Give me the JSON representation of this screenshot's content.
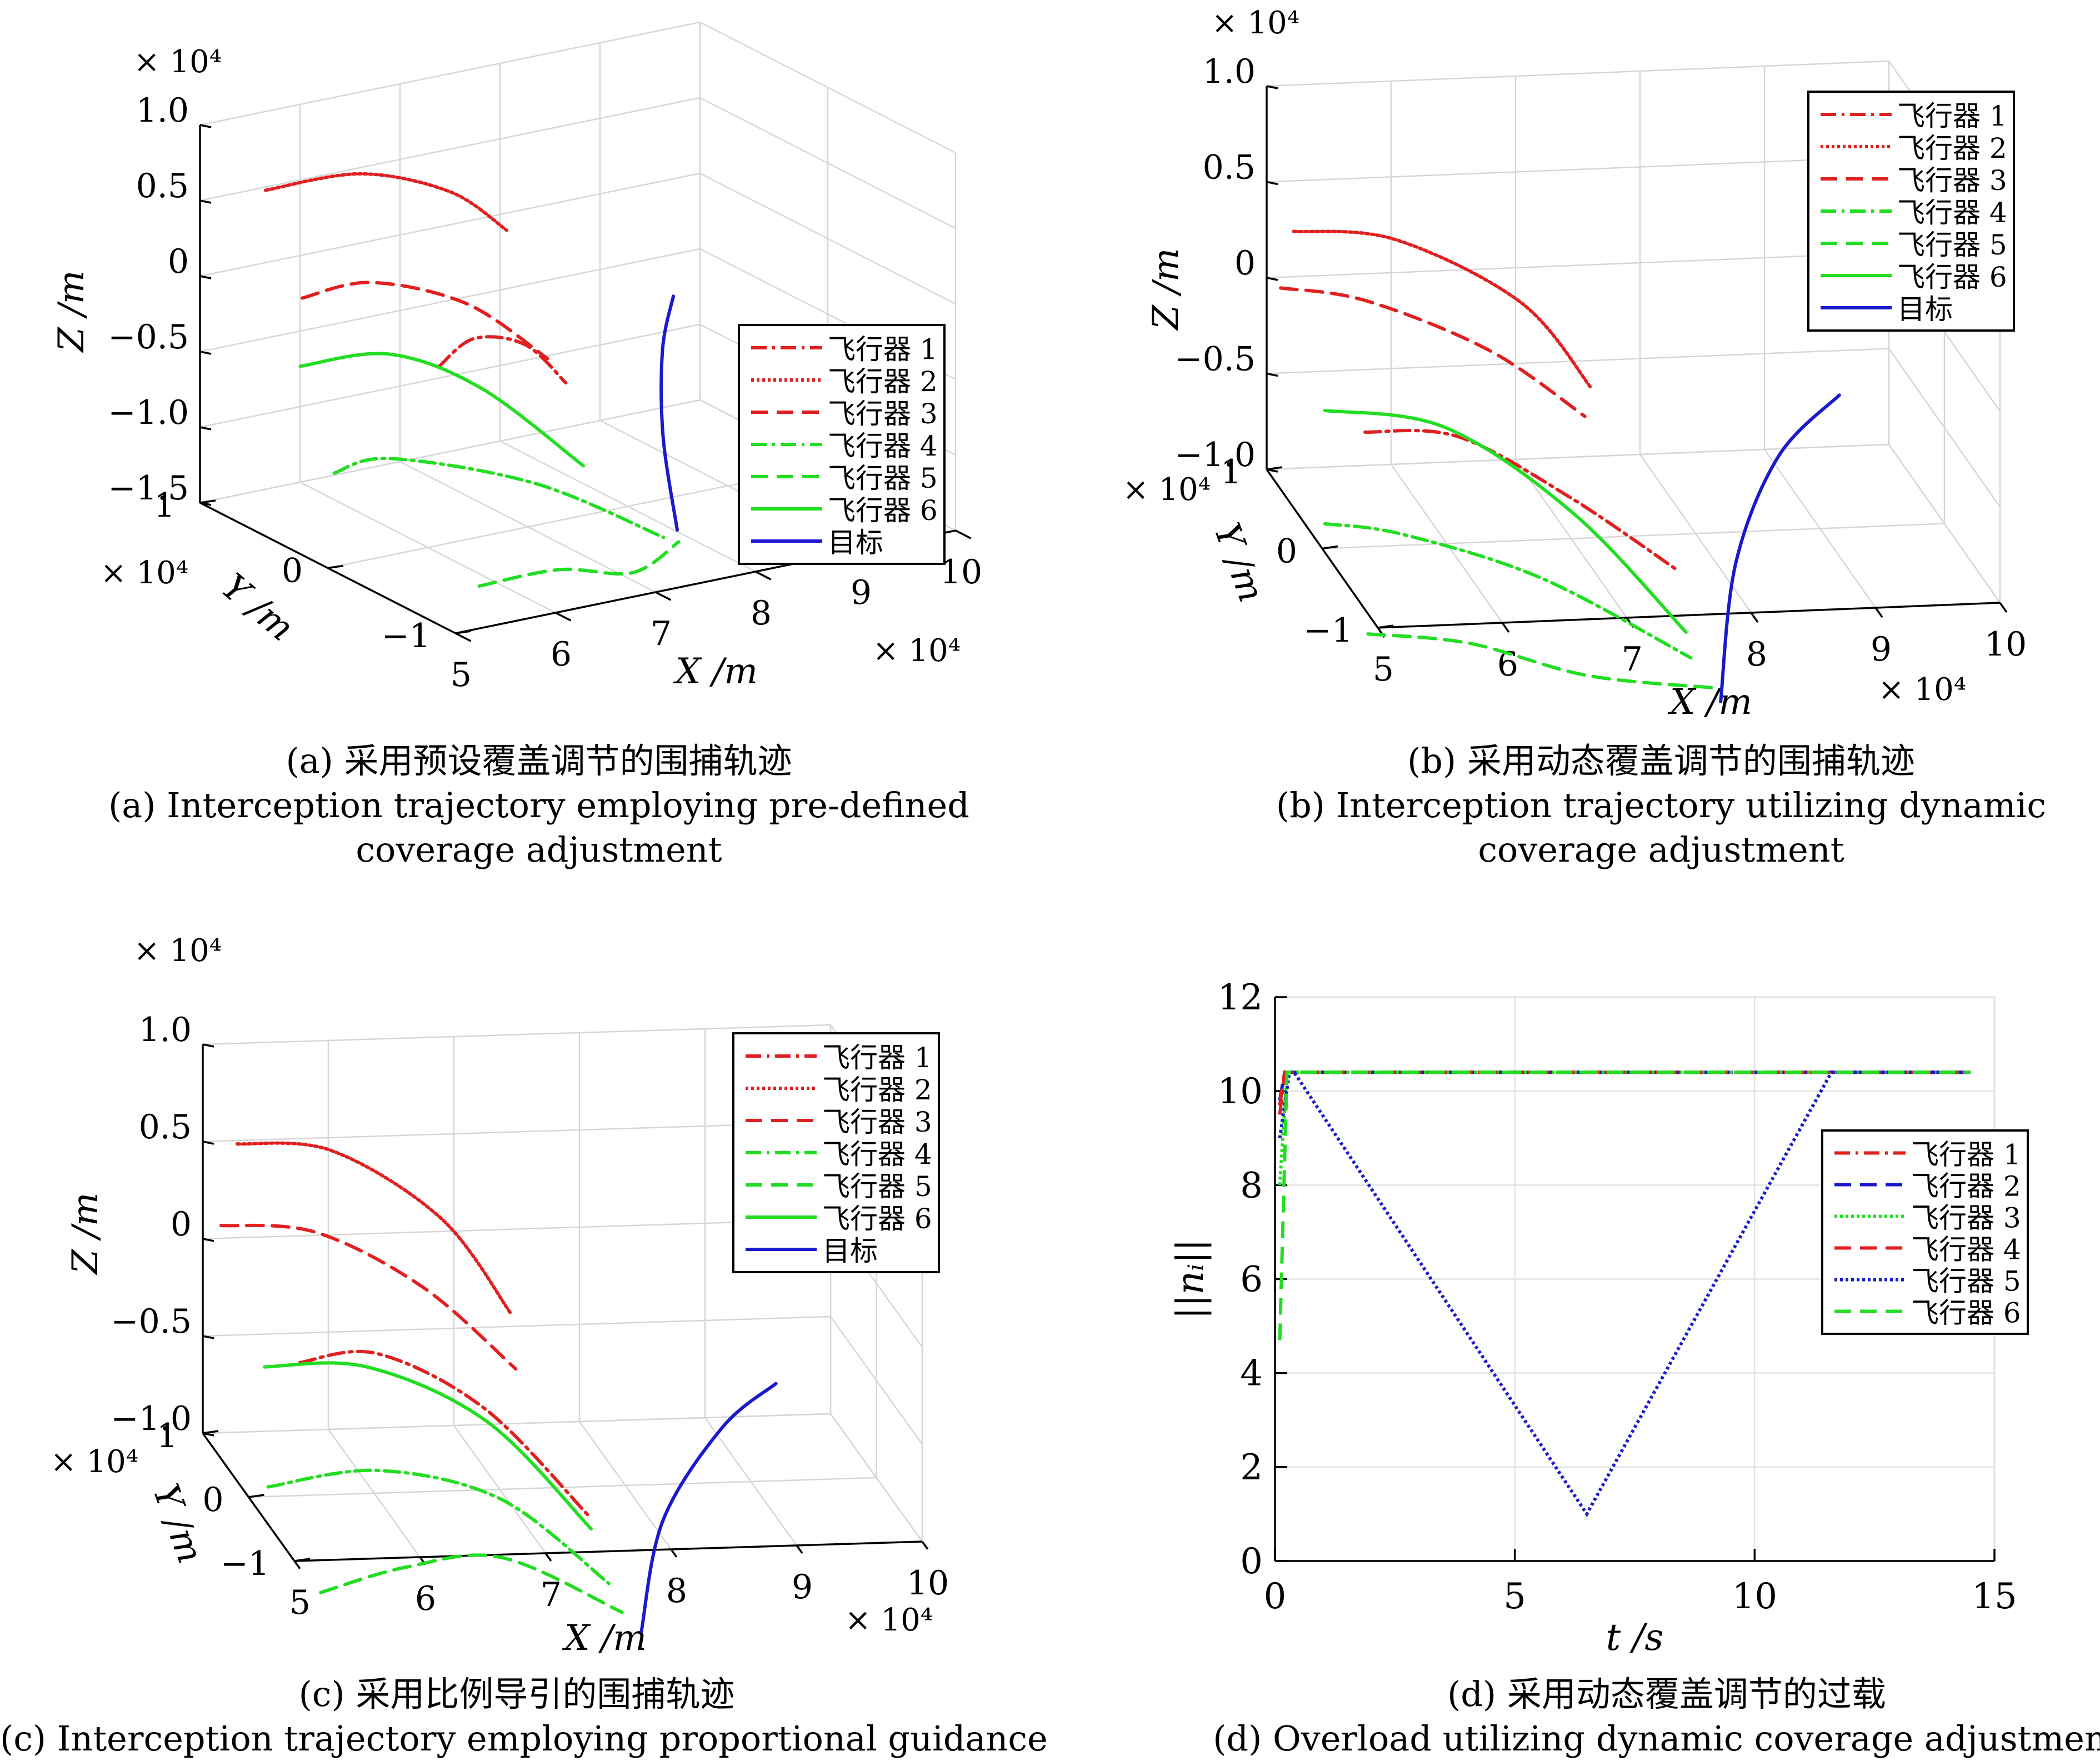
{
  "panels": [
    {
      "id": "a",
      "caption_cn": "(a) 采用预设覆盖调节的围捕轨迹",
      "caption_en_1": "(a) Interception trajectory employing pre-defined",
      "caption_en_2": "coverage adjustment"
    },
    {
      "id": "b",
      "caption_cn": "(b) 采用动态覆盖调节的围捕轨迹",
      "caption_en_1": "(b) Interception trajectory utilizing dynamic",
      "caption_en_2": "coverage adjustment"
    },
    {
      "id": "c",
      "caption_cn": "(c) 采用比例导引的围捕轨迹",
      "caption_en_1": "(c) Interception trajectory employing proportional guidance",
      "caption_en_2": ""
    },
    {
      "id": "d",
      "caption_cn": "(d) 采用动态覆盖调节的过载",
      "caption_en_1": "(d) Overload utilizing dynamic coverage adjustment",
      "caption_en_2": ""
    }
  ],
  "colors": {
    "red": "#e02020",
    "green": "#22dd22",
    "blue": "#1a1acc",
    "grid": "#d6d6d6"
  },
  "chart_data": [
    {
      "type": "line3d",
      "panel": "a",
      "xlabel": "X /m",
      "ylabel": "Y /m",
      "zlabel": "Z /m",
      "x_exponent": "× 10⁴",
      "y_exponent": "× 10⁴",
      "z_exponent": "× 10⁴",
      "x_ticks": [
        "5",
        "6",
        "7",
        "8",
        "9",
        "10"
      ],
      "y_ticks": [
        "−1",
        "0",
        "1"
      ],
      "z_ticks": [
        "−1.5",
        "−1.0",
        "−0.5",
        "0",
        "0.5",
        "1.0"
      ],
      "xlim": [
        5,
        10
      ],
      "ylim": [
        -1,
        1
      ],
      "zlim": [
        -1.5,
        1.0
      ],
      "legend_position": "right",
      "series": [
        {
          "name": "飞行器 1",
          "color": "#e02020",
          "style": "dashdot",
          "points": [
            [
              5.85,
              -0.2,
              -0.2
            ],
            [
              6.4,
              -0.05,
              -0.15
            ],
            [
              7.1,
              0.1,
              -0.35
            ],
            [
              7.7,
              0.25,
              -0.75
            ]
          ]
        },
        {
          "name": "飞行器 2",
          "color": "#e02020",
          "style": "dotted",
          "points": [
            [
              5.4,
              0.8,
              0.6
            ],
            [
              6.1,
              0.6,
              0.7
            ],
            [
              6.8,
              0.45,
              0.55
            ],
            [
              7.3,
              0.4,
              0.25
            ]
          ]
        },
        {
          "name": "飞行器 3",
          "color": "#e02020",
          "style": "dashed",
          "points": [
            [
              5.0,
              0.2,
              0.2
            ],
            [
              5.5,
              0.05,
              0.3
            ],
            [
              6.2,
              -0.15,
              0.15
            ],
            [
              6.75,
              -0.35,
              -0.2
            ]
          ]
        },
        {
          "name": "飞行器 4",
          "color": "#22dd22",
          "style": "dashdot",
          "points": [
            [
              5.0,
              -0.05,
              -0.85
            ],
            [
              5.5,
              -0.1,
              -0.8
            ],
            [
              6.5,
              -0.45,
              -0.95
            ],
            [
              7.4,
              -0.75,
              -1.3
            ]
          ]
        },
        {
          "name": "飞行器 5",
          "color": "#22dd22",
          "style": "dashed",
          "points": [
            [
              5.3,
              -0.95,
              -1.25
            ],
            [
              6.1,
              -0.95,
              -1.25
            ],
            [
              6.9,
              -0.9,
              -1.4
            ],
            [
              7.55,
              -0.75,
              -1.35
            ]
          ]
        },
        {
          "name": "飞行器 6",
          "color": "#22dd22",
          "style": "solid",
          "points": [
            [
              5.3,
              0.45,
              -0.4
            ],
            [
              6.0,
              0.3,
              -0.35
            ],
            [
              6.6,
              0.05,
              -0.55
            ],
            [
              7.3,
              -0.2,
              -1.05
            ]
          ]
        },
        {
          "name": "目标",
          "color": "#1a1acc",
          "style": "solid",
          "points": [
            [
              7.6,
              -0.7,
              -1.3
            ],
            [
              7.65,
              -0.55,
              -0.75
            ],
            [
              7.9,
              -0.35,
              -0.3
            ],
            [
              8.2,
              -0.2,
              -0.05
            ]
          ]
        }
      ]
    },
    {
      "type": "line3d",
      "panel": "b",
      "xlabel": "X /m",
      "ylabel": "Y /m",
      "zlabel": "Z /m",
      "x_exponent": "× 10⁴",
      "y_exponent": "× 10⁴",
      "z_exponent": "× 10⁴",
      "x_ticks": [
        "5",
        "6",
        "7",
        "8",
        "9",
        "10"
      ],
      "y_ticks": [
        "−1",
        "0",
        "1"
      ],
      "z_ticks": [
        "−1.0",
        "−0.5",
        "0",
        "0.5",
        "1.0"
      ],
      "xlim": [
        5,
        10
      ],
      "ylim": [
        -1,
        1
      ],
      "zlim": [
        -1.0,
        1.0
      ],
      "legend_position": "top-right",
      "series": [
        {
          "name": "飞行器 1",
          "color": "#e02020",
          "style": "dashdot",
          "points": [
            [
              5.5,
              0.35,
              -0.55
            ],
            [
              6.2,
              0.25,
              -0.55
            ],
            [
              7.0,
              0.05,
              -0.8
            ],
            [
              7.7,
              -0.3,
              -1.05
            ]
          ]
        },
        {
          "name": "飞行器 2",
          "color": "#e02020",
          "style": "dotted",
          "points": [
            [
              5.15,
              0.85,
              0.3
            ],
            [
              5.9,
              0.7,
              0.3
            ],
            [
              6.8,
              0.45,
              0.05
            ],
            [
              7.3,
              0.3,
              -0.35
            ]
          ]
        },
        {
          "name": "飞行器 3",
          "color": "#e02020",
          "style": "dashed",
          "points": [
            [
              5.0,
              0.75,
              0.05
            ],
            [
              5.6,
              0.55,
              0.05
            ],
            [
              6.5,
              0.35,
              -0.15
            ],
            [
              7.2,
              0.2,
              -0.45
            ]
          ]
        },
        {
          "name": "飞行器 4",
          "color": "#22dd22",
          "style": "dashdot",
          "points": [
            [
              5.0,
              -0.05,
              -0.85
            ],
            [
              5.6,
              -0.1,
              -0.9
            ],
            [
              6.6,
              -0.35,
              -1.05
            ],
            [
              7.65,
              -0.7,
              -1.35
            ]
          ]
        },
        {
          "name": "飞行器 5",
          "color": "#22dd22",
          "style": "dashed",
          "points": [
            [
              5.1,
              -0.6,
              -1.2
            ],
            [
              5.9,
              -0.65,
              -1.25
            ],
            [
              6.8,
              -0.75,
              -1.4
            ],
            [
              7.8,
              -0.85,
              -1.45
            ]
          ]
        },
        {
          "name": "飞行器 6",
          "color": "#22dd22",
          "style": "solid",
          "points": [
            [
              5.2,
              0.4,
              -0.45
            ],
            [
              6.1,
              0.25,
              -0.5
            ],
            [
              7.0,
              -0.05,
              -0.85
            ],
            [
              7.7,
              -0.5,
              -1.3
            ]
          ]
        },
        {
          "name": "目标",
          "color": "#1a1acc",
          "style": "solid",
          "points": [
            [
              7.8,
              -0.9,
              -1.5
            ],
            [
              8.1,
              -0.5,
              -0.95
            ],
            [
              8.6,
              -0.15,
              -0.55
            ],
            [
              9.2,
              0.1,
              -0.35
            ]
          ]
        }
      ]
    },
    {
      "type": "line3d",
      "panel": "c",
      "xlabel": "X /m",
      "ylabel": "Y /m",
      "zlabel": "Z /m",
      "x_exponent": "× 10⁴",
      "y_exponent": "× 10⁴",
      "z_exponent": "× 10⁴",
      "x_ticks": [
        "5",
        "6",
        "7",
        "8",
        "9",
        "10"
      ],
      "y_ticks": [
        "−1",
        "0",
        "1"
      ],
      "z_ticks": [
        "−1.0",
        "−0.5",
        "0",
        "0.5",
        "1.0"
      ],
      "xlim": [
        5,
        10
      ],
      "ylim": [
        -1,
        1
      ],
      "zlim": [
        -1.0,
        1.0
      ],
      "legend_position": "top-right",
      "series": [
        {
          "name": "飞行器 1",
          "color": "#e02020",
          "style": "dashdot",
          "points": [
            [
              5.5,
              0.25,
              -0.4
            ],
            [
              6.1,
              0.2,
              -0.35
            ],
            [
              6.9,
              0.05,
              -0.6
            ],
            [
              7.6,
              -0.3,
              -1.05
            ]
          ]
        },
        {
          "name": "飞行器 2",
          "color": "#e02020",
          "style": "dotted",
          "points": [
            [
              5.2,
              0.8,
              0.55
            ],
            [
              5.9,
              0.65,
              0.55
            ],
            [
              6.7,
              0.45,
              0.25
            ],
            [
              7.2,
              0.3,
              -0.2
            ]
          ]
        },
        {
          "name": "飞行器 3",
          "color": "#e02020",
          "style": "dashed",
          "points": [
            [
              5.0,
              0.6,
              0.2
            ],
            [
              5.7,
              0.45,
              0.2
            ],
            [
              6.5,
              0.3,
              -0.05
            ],
            [
              7.2,
              0.2,
              -0.45
            ]
          ]
        },
        {
          "name": "飞行器 4",
          "color": "#22dd22",
          "style": "dashdot",
          "points": [
            [
              5.1,
              -0.15,
              -0.9
            ],
            [
              6.0,
              -0.1,
              -0.85
            ],
            [
              6.9,
              -0.3,
              -0.95
            ],
            [
              7.65,
              -0.6,
              -1.3
            ]
          ]
        },
        {
          "name": "飞行器 5",
          "color": "#22dd22",
          "style": "dashed",
          "points": [
            [
              5.3,
              -0.75,
              -1.25
            ],
            [
              6.0,
              -0.7,
              -1.15
            ],
            [
              6.8,
              -0.6,
              -1.15
            ],
            [
              7.7,
              -0.75,
              -1.4
            ]
          ]
        },
        {
          "name": "飞行器 6",
          "color": "#22dd22",
          "style": "solid",
          "points": [
            [
              5.2,
              0.2,
              -0.4
            ],
            [
              6.0,
              0.15,
              -0.4
            ],
            [
              6.9,
              0.0,
              -0.65
            ],
            [
              7.6,
              -0.35,
              -1.1
            ]
          ]
        },
        {
          "name": "目标",
          "color": "#1a1acc",
          "style": "solid",
          "points": [
            [
              7.8,
              -0.9,
              -1.45
            ],
            [
              8.1,
              -0.55,
              -1.0
            ],
            [
              8.7,
              -0.2,
              -0.65
            ],
            [
              9.2,
              0.0,
              -0.5
            ]
          ]
        }
      ]
    },
    {
      "type": "line",
      "panel": "d",
      "xlabel": "t /s",
      "ylabel": "||nᵢ||",
      "xlim": [
        0,
        15
      ],
      "ylim": [
        0,
        12
      ],
      "x_ticks": [
        0,
        5,
        10,
        15
      ],
      "y_ticks": [
        0,
        2,
        4,
        6,
        8,
        10,
        12
      ],
      "grid": true,
      "legend_position": "right",
      "series": [
        {
          "name": "飞行器 1",
          "color": "#e02020",
          "style": "dashdot",
          "x": [
            0.1,
            0.2,
            14.5
          ],
          "y": [
            9.5,
            10.4,
            10.4
          ]
        },
        {
          "name": "飞行器 2",
          "color": "#1a1acc",
          "style": "dashed",
          "x": [
            0.1,
            0.2,
            14.5
          ],
          "y": [
            9.8,
            10.4,
            10.4
          ]
        },
        {
          "name": "飞行器 3",
          "color": "#22dd22",
          "style": "dotted",
          "x": [
            0.1,
            0.25,
            14.5
          ],
          "y": [
            8.0,
            10.4,
            10.4
          ]
        },
        {
          "name": "飞行器 4",
          "color": "#e02020",
          "style": "dashed",
          "x": [
            0.1,
            0.2,
            14.5
          ],
          "y": [
            9.7,
            10.4,
            10.4
          ]
        },
        {
          "name": "飞行器 5",
          "color": "#1a1acc",
          "style": "dotted",
          "x": [
            0.1,
            0.3,
            0.4,
            6.5,
            11.6,
            14.5
          ],
          "y": [
            9.0,
            10.4,
            10.4,
            1.0,
            10.4,
            10.4
          ]
        },
        {
          "name": "飞行器 6",
          "color": "#22dd22",
          "style": "dashed",
          "x": [
            0.1,
            0.25,
            14.5
          ],
          "y": [
            4.7,
            10.4,
            10.4
          ]
        }
      ]
    }
  ]
}
